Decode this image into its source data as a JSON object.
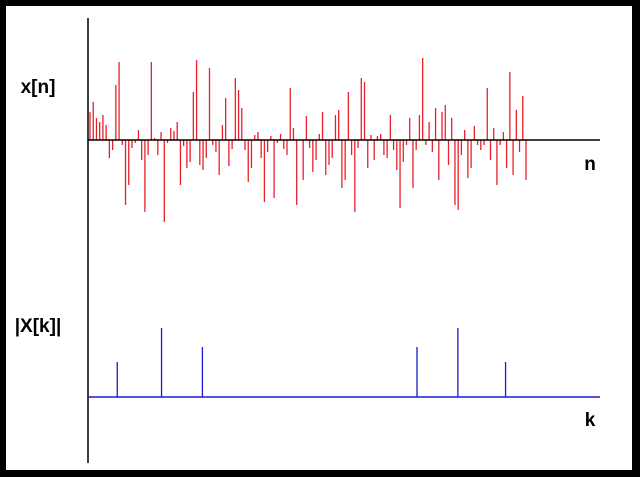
{
  "chart_data": [
    {
      "type": "stem",
      "ylabel": "x[n]",
      "xlabel": "n",
      "color": "#e8202a",
      "ylim": [
        -100,
        100
      ],
      "values": [
        28,
        38,
        22,
        18,
        25,
        15,
        -18,
        -10,
        55,
        78,
        -5,
        -65,
        -45,
        -8,
        -3,
        10,
        -20,
        -72,
        -15,
        78,
        2,
        -15,
        8,
        -82,
        -3,
        12,
        9,
        18,
        -45,
        -6,
        -28,
        -22,
        48,
        80,
        -25,
        -30,
        -18,
        72,
        -5,
        -12,
        -35,
        15,
        42,
        -26,
        -9,
        62,
        50,
        32,
        -10,
        -42,
        -28,
        5,
        8,
        -18,
        -62,
        -12,
        4,
        -58,
        -3,
        6,
        -9,
        -15,
        52,
        12,
        -65,
        0,
        -40,
        24,
        -8,
        -32,
        -20,
        6,
        28,
        -35,
        -25,
        -18,
        25,
        30,
        -48,
        -40,
        48,
        -15,
        -72,
        -8,
        62,
        58,
        -28,
        5,
        -20,
        4,
        6,
        -15,
        -18,
        25,
        -10,
        -30,
        -68,
        -22,
        -5,
        22,
        -48,
        -10,
        25,
        82,
        -5,
        18,
        -12,
        32,
        -40,
        28,
        35,
        -25,
        22,
        -65,
        -70,
        -15,
        10,
        -38,
        -28,
        14,
        -5,
        -10,
        -5,
        52,
        -20,
        12,
        -45,
        -5,
        8,
        -28,
        68,
        -35,
        30,
        -12,
        44,
        -40
      ]
    },
    {
      "type": "stem",
      "ylabel": "|X[k]|",
      "xlabel": "k",
      "color": "#1a1ad0",
      "ylim": [
        0,
        100
      ],
      "xlim": [
        0,
        128
      ],
      "x": [
        8,
        21,
        33,
        96,
        108,
        122
      ],
      "values": [
        35,
        69,
        50,
        50,
        69,
        35
      ]
    }
  ]
}
